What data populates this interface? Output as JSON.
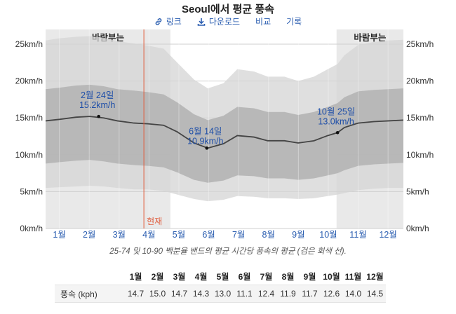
{
  "header": {
    "title": "Seoul에서 평균 풍속",
    "toolbar": [
      {
        "label": "링크",
        "icon": "link-icon"
      },
      {
        "label": "다운로드",
        "icon": "download-icon"
      },
      {
        "label": "비교",
        "icon": ""
      },
      {
        "label": "기록",
        "icon": ""
      }
    ]
  },
  "chart_data": {
    "type": "area",
    "months": [
      "1월",
      "2월",
      "3월",
      "4월",
      "5월",
      "6월",
      "7월",
      "8월",
      "9월",
      "10월",
      "11월",
      "12월"
    ],
    "yticks": [
      "0km/h",
      "5km/h",
      "10km/h",
      "15km/h",
      "20km/h",
      "25km/h"
    ],
    "ylim": [
      0,
      27
    ],
    "x_days": [
      1,
      15,
      32,
      46,
      60,
      74,
      91,
      105,
      121,
      135,
      152,
      166,
      182,
      196,
      213,
      227,
      244,
      258,
      274,
      288,
      298,
      305,
      319,
      335,
      350,
      365
    ],
    "mean": [
      14.6,
      14.8,
      15.1,
      15.2,
      15.0,
      14.6,
      14.3,
      14.2,
      14.0,
      13.1,
      11.6,
      10.9,
      11.5,
      12.6,
      12.4,
      11.9,
      11.9,
      11.6,
      11.9,
      12.6,
      13.0,
      13.7,
      14.3,
      14.5,
      14.6,
      14.7
    ],
    "p25": [
      8.8,
      9.0,
      9.2,
      9.3,
      9.1,
      8.8,
      8.6,
      8.5,
      8.3,
      7.6,
      6.6,
      6.2,
      6.5,
      7.2,
      7.1,
      6.8,
      6.8,
      6.6,
      6.8,
      7.2,
      7.5,
      7.9,
      8.5,
      8.7,
      8.8,
      8.9
    ],
    "p75": [
      18.9,
      19.1,
      19.4,
      19.5,
      19.3,
      18.9,
      18.7,
      18.5,
      18.2,
      17.1,
      15.5,
      14.7,
      15.3,
      16.5,
      16.3,
      15.8,
      15.8,
      15.4,
      15.8,
      16.5,
      17.0,
      17.8,
      18.6,
      18.8,
      18.9,
      19.0
    ],
    "p10": [
      5.5,
      5.6,
      5.7,
      5.8,
      5.7,
      5.5,
      5.3,
      5.3,
      5.1,
      4.6,
      4.0,
      3.7,
      3.9,
      4.4,
      4.3,
      4.1,
      4.1,
      4.0,
      4.1,
      4.4,
      4.6,
      4.8,
      5.2,
      5.4,
      5.5,
      5.5
    ],
    "p90": [
      25.5,
      25.8,
      26.0,
      26.1,
      25.9,
      25.4,
      25.1,
      24.8,
      24.4,
      22.5,
      20.2,
      19.0,
      19.7,
      21.6,
      21.3,
      20.6,
      20.6,
      20.0,
      20.6,
      21.6,
      22.3,
      23.5,
      24.9,
      25.3,
      25.5,
      25.6
    ],
    "windy_periods": [
      {
        "label": "바람부는",
        "start_day": 1,
        "end_day": 128
      },
      {
        "label": "바람부는",
        "start_day": 297,
        "end_day": 365
      }
    ],
    "now": {
      "label": "현재",
      "day": 101
    },
    "annotations": [
      {
        "date": "2월 24일",
        "value": "15.2km/h",
        "day": 55,
        "y": 15.2
      },
      {
        "date": "6월 14일",
        "value": "10.9km/h",
        "day": 165,
        "y": 10.9
      },
      {
        "date": "10월 25일",
        "value": "13.0km/h",
        "day": 298,
        "y": 13.0
      }
    ],
    "colors": {
      "outer_band": "#d4d4d4",
      "inner_band": "#b2b2b2",
      "mean_line": "#444444",
      "windy_bg": "#e9e9e9",
      "now_line": "#e05a3a",
      "axis_text": "#333333",
      "month_text": "#2a5db0",
      "annotation_text": "#1f4fa8"
    },
    "grid": true
  },
  "caption": "25-74 및 10-90 백분율 밴드의 평균 시간당 풍속의 평균 (검은 회색 선).",
  "summary_table": {
    "row_label": "풍속 (kph)",
    "months": [
      "1월",
      "2월",
      "3월",
      "4월",
      "5월",
      "6월",
      "7월",
      "8월",
      "9월",
      "10월",
      "11월",
      "12월"
    ],
    "values": [
      "14.7",
      "15.0",
      "14.7",
      "14.3",
      "13.0",
      "11.1",
      "12.4",
      "11.9",
      "11.7",
      "12.6",
      "14.0",
      "14.5"
    ]
  }
}
